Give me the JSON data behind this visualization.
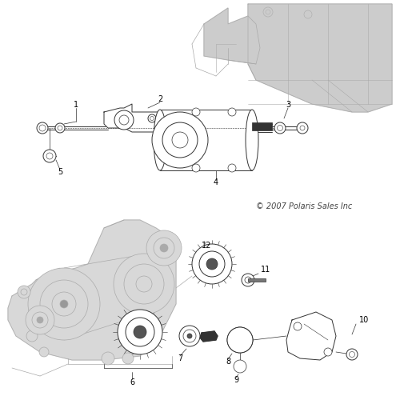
{
  "background_color": "#ffffff",
  "line_color": "#888888",
  "dark_line_color": "#333333",
  "light_line_color": "#bbbbbb",
  "label_color": "#000000",
  "label_fontsize": 7,
  "copyright_text": "© 2007 Polaris Sales Inc",
  "copyright_fontsize": 7
}
